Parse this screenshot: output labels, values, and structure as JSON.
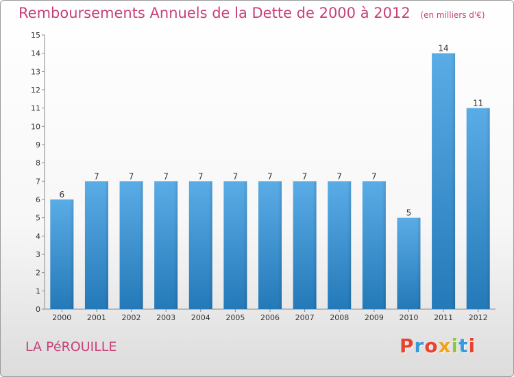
{
  "title": "Remboursements Annuels de la Dette de 2000 à 2012",
  "unit_label": "(en milliers d'€)",
  "commune": "LA PéROUILLE",
  "logo": {
    "text": "Proxiti",
    "colors": [
      "#e8432f",
      "#3a9ad9",
      "#e8432f",
      "#f2a31b",
      "#8dc63f",
      "#3a9ad9",
      "#e8432f"
    ]
  },
  "colors": {
    "bar_top": "#5aace6",
    "bar_bottom": "#2479b8",
    "title": "#c8407a"
  },
  "chart_data": {
    "type": "bar",
    "categories": [
      "2000",
      "2001",
      "2002",
      "2003",
      "2004",
      "2005",
      "2006",
      "2007",
      "2008",
      "2009",
      "2010",
      "2011",
      "2012"
    ],
    "values": [
      6,
      7,
      7,
      7,
      7,
      7,
      7,
      7,
      7,
      7,
      5,
      14,
      11
    ],
    "ylim": [
      0,
      15
    ],
    "yticks": [
      "0",
      "1",
      "2",
      "3",
      "4",
      "5",
      "6",
      "7",
      "8",
      "9",
      "10",
      "11",
      "12",
      "13",
      "14",
      "15"
    ],
    "grid": false,
    "title": "Remboursements Annuels de la Dette de 2000 à 2012",
    "xlabel": "",
    "ylabel": ""
  }
}
